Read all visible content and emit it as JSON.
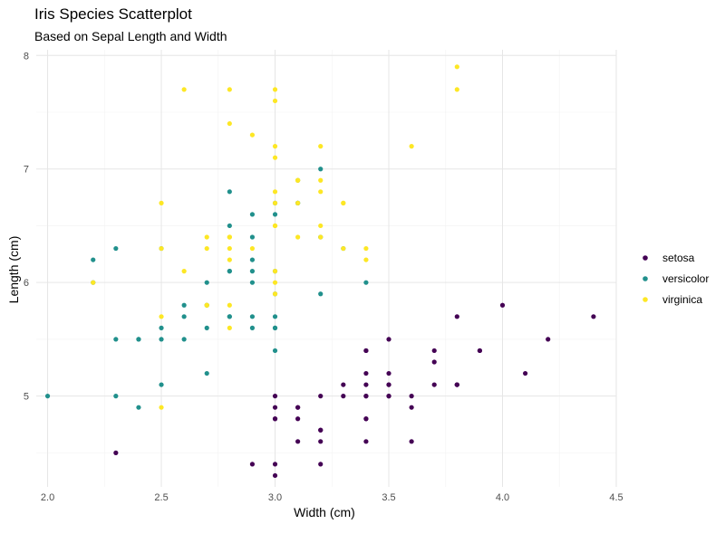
{
  "chart_data": {
    "type": "scatter",
    "title": "Iris Species Scatterplot",
    "subtitle": "Based on Sepal Length and Width",
    "xlabel": "Width (cm)",
    "ylabel": "Length (cm)",
    "xlim": [
      1.95,
      4.5
    ],
    "ylim": [
      4.2,
      8.05
    ],
    "xticks": [
      2.0,
      2.5,
      3.0,
      3.5,
      4.0,
      4.5
    ],
    "xtick_labels": [
      "2.0",
      "2.5",
      "3.0",
      "3.5",
      "4.0",
      "4.5"
    ],
    "yticks": [
      5,
      6,
      7,
      8
    ],
    "ytick_labels": [
      "5",
      "6",
      "7",
      "8"
    ],
    "grid": true,
    "legend_position": "right",
    "series": [
      {
        "name": "setosa",
        "color": "#440154",
        "points": [
          [
            3.5,
            5.1
          ],
          [
            3.0,
            4.9
          ],
          [
            3.2,
            4.7
          ],
          [
            3.1,
            4.6
          ],
          [
            3.6,
            5.0
          ],
          [
            3.9,
            5.4
          ],
          [
            3.4,
            4.6
          ],
          [
            3.4,
            5.0
          ],
          [
            2.9,
            4.4
          ],
          [
            3.1,
            4.9
          ],
          [
            3.7,
            5.4
          ],
          [
            3.4,
            4.8
          ],
          [
            3.0,
            4.8
          ],
          [
            3.0,
            4.3
          ],
          [
            4.0,
            5.8
          ],
          [
            4.4,
            5.7
          ],
          [
            3.9,
            5.4
          ],
          [
            3.5,
            5.1
          ],
          [
            3.8,
            5.7
          ],
          [
            3.8,
            5.1
          ],
          [
            3.4,
            5.4
          ],
          [
            3.7,
            5.1
          ],
          [
            3.6,
            4.6
          ],
          [
            3.3,
            5.1
          ],
          [
            3.4,
            4.8
          ],
          [
            3.0,
            5.0
          ],
          [
            3.4,
            5.0
          ],
          [
            3.5,
            5.2
          ],
          [
            3.4,
            5.2
          ],
          [
            3.2,
            4.7
          ],
          [
            3.1,
            4.8
          ],
          [
            3.4,
            5.4
          ],
          [
            4.1,
            5.2
          ],
          [
            4.2,
            5.5
          ],
          [
            3.1,
            4.9
          ],
          [
            3.2,
            5.0
          ],
          [
            3.5,
            5.5
          ],
          [
            3.6,
            4.9
          ],
          [
            3.0,
            4.4
          ],
          [
            3.4,
            5.1
          ],
          [
            3.5,
            5.0
          ],
          [
            2.3,
            4.5
          ],
          [
            3.2,
            4.4
          ],
          [
            3.5,
            5.0
          ],
          [
            3.8,
            5.1
          ],
          [
            3.0,
            4.8
          ],
          [
            3.8,
            5.1
          ],
          [
            3.2,
            4.6
          ],
          [
            3.7,
            5.3
          ],
          [
            3.3,
            5.0
          ]
        ]
      },
      {
        "name": "versicolor",
        "color": "#21908C",
        "points": [
          [
            3.2,
            7.0
          ],
          [
            3.2,
            6.4
          ],
          [
            3.1,
            6.9
          ],
          [
            2.3,
            5.5
          ],
          [
            2.8,
            6.5
          ],
          [
            2.8,
            5.7
          ],
          [
            3.3,
            6.3
          ],
          [
            2.4,
            4.9
          ],
          [
            2.9,
            6.6
          ],
          [
            2.7,
            5.2
          ],
          [
            2.0,
            5.0
          ],
          [
            3.0,
            5.9
          ],
          [
            2.2,
            6.0
          ],
          [
            2.9,
            6.1
          ],
          [
            2.9,
            5.6
          ],
          [
            3.1,
            6.7
          ],
          [
            3.0,
            5.6
          ],
          [
            2.7,
            5.8
          ],
          [
            2.2,
            6.2
          ],
          [
            2.5,
            5.6
          ],
          [
            3.2,
            5.9
          ],
          [
            2.8,
            6.1
          ],
          [
            2.5,
            6.3
          ],
          [
            2.8,
            6.1
          ],
          [
            2.9,
            6.4
          ],
          [
            3.0,
            6.6
          ],
          [
            2.8,
            6.8
          ],
          [
            3.0,
            6.7
          ],
          [
            2.9,
            6.0
          ],
          [
            2.6,
            5.7
          ],
          [
            2.4,
            5.5
          ],
          [
            2.4,
            5.5
          ],
          [
            2.7,
            5.8
          ],
          [
            2.7,
            6.0
          ],
          [
            3.0,
            5.4
          ],
          [
            3.4,
            6.0
          ],
          [
            3.1,
            6.7
          ],
          [
            2.3,
            6.3
          ],
          [
            3.0,
            5.6
          ],
          [
            2.5,
            5.5
          ],
          [
            2.6,
            5.5
          ],
          [
            3.0,
            6.1
          ],
          [
            2.6,
            5.8
          ],
          [
            2.3,
            5.0
          ],
          [
            2.7,
            5.6
          ],
          [
            3.0,
            5.7
          ],
          [
            2.9,
            5.7
          ],
          [
            2.9,
            6.2
          ],
          [
            2.5,
            5.1
          ],
          [
            2.8,
            5.7
          ]
        ]
      },
      {
        "name": "virginica",
        "color": "#FDE725",
        "points": [
          [
            3.3,
            6.3
          ],
          [
            2.7,
            5.8
          ],
          [
            3.0,
            7.1
          ],
          [
            2.9,
            6.3
          ],
          [
            3.0,
            6.5
          ],
          [
            3.0,
            7.6
          ],
          [
            2.5,
            4.9
          ],
          [
            2.9,
            7.3
          ],
          [
            2.5,
            6.7
          ],
          [
            3.6,
            7.2
          ],
          [
            3.2,
            6.5
          ],
          [
            2.7,
            6.4
          ],
          [
            3.0,
            6.8
          ],
          [
            2.5,
            5.7
          ],
          [
            2.8,
            5.8
          ],
          [
            3.2,
            6.4
          ],
          [
            3.0,
            6.5
          ],
          [
            3.8,
            7.7
          ],
          [
            2.6,
            7.7
          ],
          [
            2.2,
            6.0
          ],
          [
            3.2,
            6.9
          ],
          [
            2.8,
            5.6
          ],
          [
            2.8,
            7.7
          ],
          [
            2.7,
            6.3
          ],
          [
            3.3,
            6.7
          ],
          [
            3.2,
            7.2
          ],
          [
            2.8,
            6.2
          ],
          [
            3.0,
            6.1
          ],
          [
            2.8,
            6.4
          ],
          [
            3.0,
            7.2
          ],
          [
            2.8,
            7.4
          ],
          [
            3.8,
            7.9
          ],
          [
            2.8,
            6.4
          ],
          [
            2.8,
            6.3
          ],
          [
            2.6,
            6.1
          ],
          [
            3.0,
            7.7
          ],
          [
            3.4,
            6.3
          ],
          [
            3.1,
            6.4
          ],
          [
            3.0,
            6.0
          ],
          [
            3.1,
            6.9
          ],
          [
            3.1,
            6.7
          ],
          [
            3.1,
            6.9
          ],
          [
            2.7,
            5.8
          ],
          [
            3.2,
            6.8
          ],
          [
            3.3,
            6.7
          ],
          [
            3.0,
            6.7
          ],
          [
            2.5,
            6.3
          ],
          [
            3.0,
            6.5
          ],
          [
            3.4,
            6.2
          ],
          [
            3.0,
            5.9
          ]
        ]
      }
    ]
  }
}
